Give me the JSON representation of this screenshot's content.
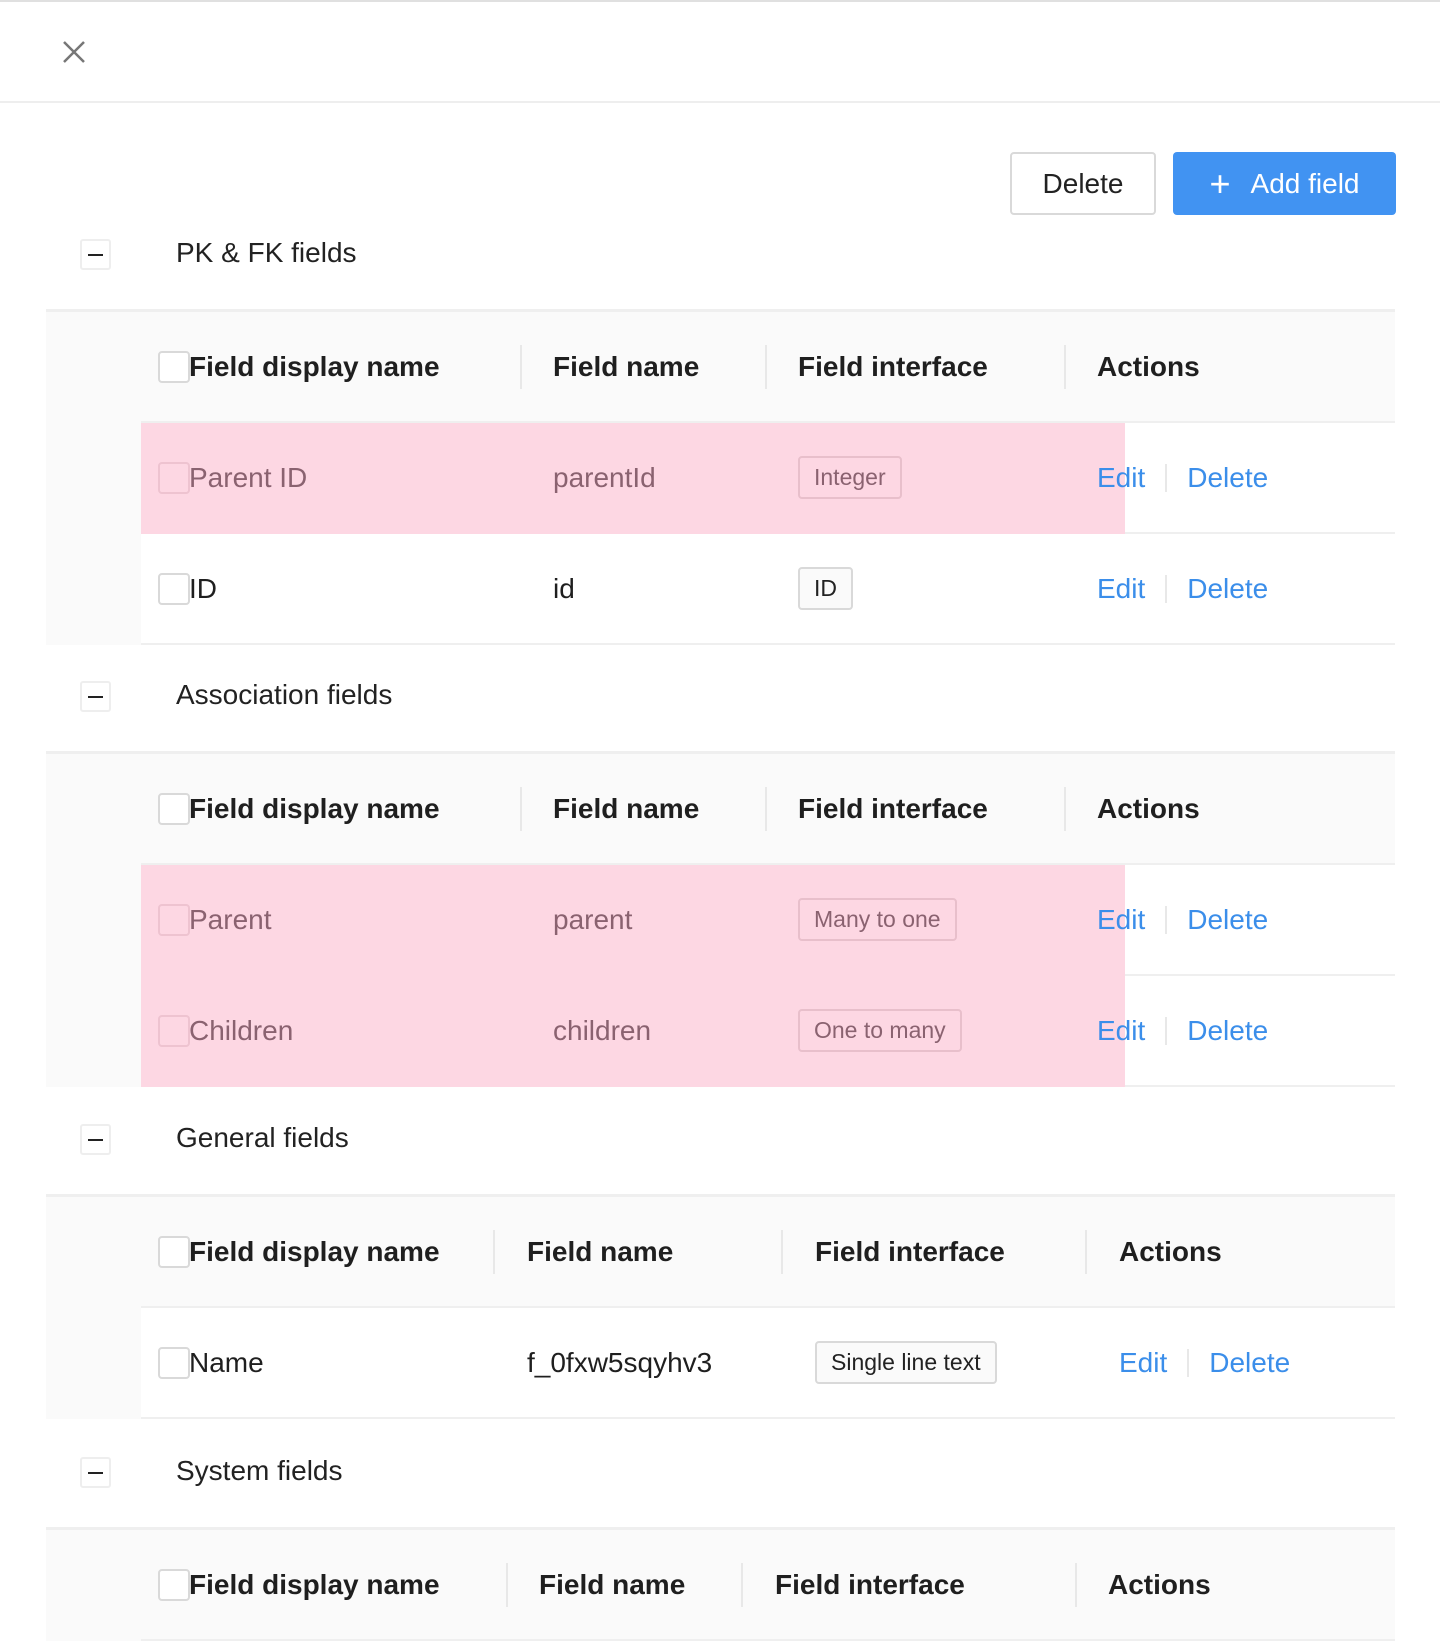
{
  "header": {
    "close_icon": "close-icon"
  },
  "toolbar": {
    "delete_label": "Delete",
    "add_label": "Add field",
    "add_icon": "plus-icon"
  },
  "colors": {
    "primary": "#4193f2",
    "highlight_row": "#fdd7e3",
    "link": "#3b8eea"
  },
  "columns": {
    "display_name": "Field display name",
    "name": "Field name",
    "interface": "Field interface",
    "actions": "Actions"
  },
  "actions": {
    "edit": "Edit",
    "delete": "Delete"
  },
  "sections": [
    {
      "title": "PK & FK fields",
      "rows": [
        {
          "display_name": "Parent ID",
          "name": "parentId",
          "interface": "Integer",
          "highlighted": true
        },
        {
          "display_name": "ID",
          "name": "id",
          "interface": "ID",
          "highlighted": false
        }
      ]
    },
    {
      "title": "Association fields",
      "rows": [
        {
          "display_name": "Parent",
          "name": "parent",
          "interface": "Many to one",
          "highlighted": true
        },
        {
          "display_name": "Children",
          "name": "children",
          "interface": "One to many",
          "highlighted": true
        }
      ]
    },
    {
      "title": "General fields",
      "rows": [
        {
          "display_name": "Name",
          "name": "f_0fxw5sqyhv3",
          "interface": "Single line text",
          "highlighted": false
        }
      ]
    },
    {
      "title": "System fields",
      "rows": []
    }
  ]
}
